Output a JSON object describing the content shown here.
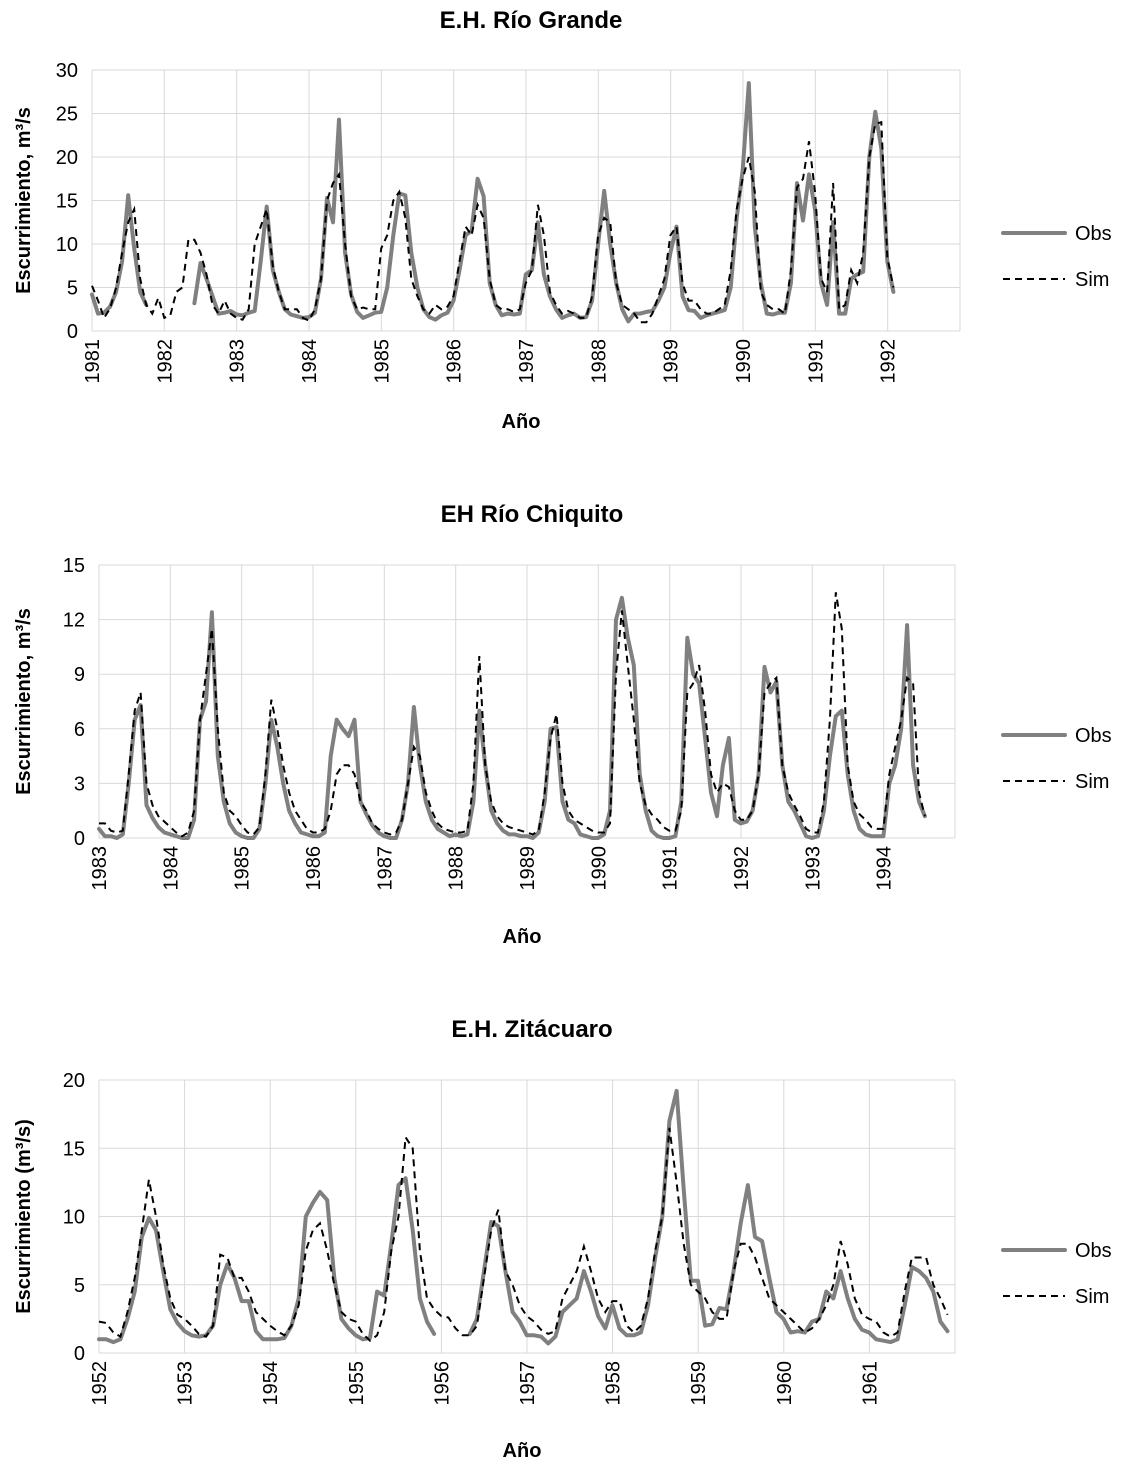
{
  "chart_data": [
    {
      "type": "line",
      "title": "E.H. Río Grande",
      "xlabel": "Año",
      "ylabel": "Escurrimiento, m³/s",
      "ylim": [
        0,
        30
      ],
      "yticks": [
        "0",
        "5",
        "10",
        "15",
        "20",
        "25",
        "30"
      ],
      "xlim": [
        1981,
        1993
      ],
      "xticks": [
        "1981",
        "1982",
        "1983",
        "1984",
        "1985",
        "1986",
        "1987",
        "1988",
        "1989",
        "1990",
        "1991",
        "1992"
      ],
      "grid": true,
      "legend_position": "right",
      "colors": {
        "Obs": "#808080",
        "Sim": "#000000"
      },
      "series": [
        {
          "name": "Obs",
          "x_start": 1981.0,
          "step": 0.0833,
          "values": [
            4.2,
            2.0,
            2.1,
            2.8,
            4.5,
            8.0,
            15.6,
            9.5,
            4.5,
            3.0,
            null,
            null,
            null,
            null,
            null,
            null,
            null,
            3.2,
            7.8,
            6.0,
            4.0,
            2.0,
            2.1,
            2.3,
            1.9,
            1.8,
            2.1,
            2.3,
            8.0,
            14.3,
            7.0,
            4.5,
            2.5,
            1.9,
            1.7,
            1.5,
            1.6,
            2.1,
            6.0,
            15.3,
            12.5,
            24.3,
            9.0,
            4.2,
            2.2,
            1.5,
            1.8,
            2.1,
            2.2,
            5.0,
            11.0,
            15.8,
            15.6,
            9.0,
            5.0,
            2.5,
            1.6,
            1.3,
            1.8,
            2.1,
            3.5,
            7.0,
            11.0,
            11.5,
            17.5,
            15.5,
            5.5,
            3.0,
            1.8,
            2.0,
            1.9,
            2.0,
            6.5,
            7.0,
            12.5,
            6.5,
            4.0,
            2.5,
            1.5,
            1.8,
            2.0,
            1.5,
            1.6,
            3.5,
            10.0,
            16.1,
            10.0,
            5.5,
            2.5,
            1.1,
            2.0,
            2.0,
            2.2,
            2.3,
            3.5,
            5.0,
            9.0,
            12.0,
            4.0,
            2.4,
            2.3,
            1.5,
            1.8,
            2.0,
            2.2,
            2.4,
            5.0,
            13.0,
            18.5,
            28.5,
            12.0,
            5.5,
            2.0,
            1.9,
            2.1,
            2.1,
            5.5,
            17.0,
            12.7,
            18.0,
            14.0,
            5.5,
            3.0,
            12.5,
            2.0,
            2.0,
            6.0,
            6.5,
            6.8,
            20.0,
            25.2,
            21.0,
            8.0,
            4.5
          ]
        },
        {
          "name": "Sim",
          "x_start": 1981.0,
          "step": 0.0833,
          "values": [
            5.2,
            3.5,
            1.5,
            2.6,
            5.0,
            9.0,
            12.5,
            14.0,
            6.0,
            3.0,
            2.0,
            3.8,
            1.5,
            1.8,
            4.5,
            5.0,
            10.5,
            10.5,
            9.0,
            6.5,
            3.0,
            2.0,
            3.5,
            2.0,
            1.5,
            1.3,
            2.5,
            10.0,
            12.0,
            14.0,
            7.5,
            4.5,
            2.5,
            2.5,
            2.5,
            1.5,
            1.2,
            2.5,
            6.0,
            15.0,
            17.0,
            18.0,
            10.0,
            4.0,
            2.5,
            2.7,
            2.5,
            2.5,
            9.5,
            11.0,
            15.0,
            16.0,
            13.0,
            6.0,
            4.0,
            2.5,
            2.0,
            3.0,
            2.5,
            2.8,
            4.0,
            8.0,
            12.0,
            11.0,
            14.5,
            13.0,
            6.0,
            3.0,
            2.5,
            2.5,
            2.2,
            2.5,
            5.5,
            7.0,
            14.5,
            11.0,
            4.5,
            3.0,
            2.0,
            2.3,
            2.0,
            1.5,
            1.5,
            4.0,
            11.0,
            13.0,
            12.5,
            5.5,
            3.0,
            2.5,
            2.0,
            1.0,
            1.0,
            2.0,
            4.0,
            6.0,
            11.0,
            12.0,
            5.5,
            3.5,
            3.5,
            2.5,
            2.0,
            2.0,
            2.5,
            3.0,
            7.0,
            14.0,
            17.5,
            20.0,
            16.0,
            4.5,
            3.0,
            2.5,
            2.5,
            2.0,
            7.0,
            16.5,
            17.5,
            21.8,
            16.0,
            6.0,
            4.5,
            17.0,
            2.5,
            3.0,
            7.0,
            5.5,
            9.0,
            20.0,
            23.8,
            24.0,
            8.5,
            5.0
          ]
        }
      ]
    },
    {
      "type": "line",
      "title": "EH Río Chiquito",
      "xlabel": "Año",
      "ylabel": "Escurrimiento, m³/s",
      "ylim": [
        0,
        15
      ],
      "yticks": [
        "0",
        "3",
        "6",
        "9",
        "12",
        "15"
      ],
      "xlim": [
        1983,
        1995
      ],
      "xticks": [
        "1983",
        "1984",
        "1985",
        "1986",
        "1987",
        "1988",
        "1989",
        "1990",
        "1991",
        "1992",
        "1993",
        "1994"
      ],
      "grid": true,
      "legend_position": "right",
      "colors": {
        "Obs": "#808080",
        "Sim": "#000000"
      },
      "series": [
        {
          "name": "Obs",
          "x_start": 1983.0,
          "step": 0.0833,
          "values": [
            0.5,
            0.1,
            0.1,
            0.0,
            0.2,
            3.0,
            6.5,
            7.3,
            1.8,
            1.1,
            0.6,
            0.3,
            0.2,
            0.1,
            0.0,
            0.0,
            1.0,
            6.5,
            7.5,
            12.4,
            4.5,
            2.0,
            0.8,
            0.3,
            0.1,
            0.0,
            0.0,
            0.5,
            3.0,
            6.5,
            5.0,
            3.0,
            1.5,
            0.8,
            0.3,
            0.2,
            0.1,
            0.1,
            0.3,
            4.5,
            6.5,
            6.0,
            5.6,
            6.5,
            2.0,
            1.3,
            0.7,
            0.3,
            0.1,
            0.0,
            0.0,
            1.0,
            3.0,
            7.2,
            4.0,
            2.0,
            1.0,
            0.5,
            0.3,
            0.1,
            0.2,
            0.1,
            0.2,
            2.0,
            7.0,
            4.0,
            1.5,
            0.8,
            0.4,
            0.2,
            0.2,
            0.1,
            0.1,
            0.0,
            0.3,
            2.0,
            6.0,
            6.1,
            2.0,
            1.0,
            0.8,
            0.2,
            0.1,
            0.0,
            0.0,
            0.2,
            1.5,
            12.0,
            13.2,
            11.0,
            9.5,
            3.5,
            1.5,
            0.4,
            0.1,
            0.0,
            0.0,
            0.1,
            2.0,
            11.0,
            9.0,
            8.5,
            5.5,
            2.5,
            1.2,
            4.0,
            5.5,
            1.0,
            0.8,
            0.9,
            1.5,
            3.5,
            9.4,
            8.0,
            8.6,
            4.0,
            2.0,
            1.5,
            0.8,
            0.1,
            0.0,
            0.1,
            1.5,
            4.5,
            6.7,
            7.0,
            3.5,
            1.5,
            0.5,
            0.2,
            0.1,
            0.1,
            0.1,
            3.0,
            4.0,
            6.0,
            11.7,
            4.0,
            2.0,
            1.2
          ]
        },
        {
          "name": "Sim",
          "x_start": 1983.0,
          "step": 0.0833,
          "values": [
            0.8,
            0.8,
            0.4,
            0.3,
            0.4,
            3.5,
            7.0,
            8.0,
            3.0,
            1.8,
            1.2,
            0.9,
            0.6,
            0.3,
            0.1,
            0.3,
            1.5,
            6.5,
            9.0,
            11.5,
            6.0,
            2.5,
            1.5,
            1.2,
            0.7,
            0.3,
            0.2,
            0.6,
            3.5,
            7.6,
            6.0,
            4.0,
            2.5,
            1.5,
            1.0,
            0.5,
            0.3,
            0.3,
            0.5,
            1.5,
            3.5,
            4.0,
            4.0,
            3.5,
            2.0,
            1.5,
            0.8,
            0.5,
            0.3,
            0.2,
            0.3,
            1.0,
            3.0,
            5.0,
            4.5,
            2.5,
            1.5,
            0.8,
            0.5,
            0.4,
            0.3,
            0.3,
            0.4,
            3.0,
            10.0,
            4.0,
            2.0,
            1.2,
            0.8,
            0.6,
            0.5,
            0.4,
            0.3,
            0.2,
            0.4,
            2.5,
            5.5,
            6.8,
            3.0,
            1.5,
            1.0,
            0.8,
            0.6,
            0.4,
            0.3,
            0.3,
            0.8,
            9.0,
            12.5,
            9.5,
            6.5,
            3.0,
            1.8,
            1.3,
            1.0,
            0.6,
            0.4,
            0.4,
            1.5,
            8.0,
            8.5,
            9.5,
            7.0,
            3.5,
            2.5,
            3.0,
            2.8,
            1.5,
            1.0,
            1.0,
            1.5,
            3.5,
            8.0,
            8.5,
            8.8,
            4.0,
            2.5,
            1.8,
            1.2,
            0.5,
            0.3,
            0.3,
            2.0,
            6.5,
            13.5,
            11.5,
            4.0,
            2.0,
            1.3,
            1.0,
            0.6,
            0.5,
            0.5,
            3.5,
            5.0,
            6.5,
            8.8,
            8.5,
            2.5,
            1.2
          ]
        }
      ]
    },
    {
      "type": "line",
      "title": "E.H. Zitácuaro",
      "xlabel": "Año",
      "ylabel": "Escurrimiento (m³/s)",
      "ylim": [
        0,
        20
      ],
      "yticks": [
        "0",
        "5",
        "10",
        "15",
        "20"
      ],
      "xlim": [
        1952,
        1962
      ],
      "xticks": [
        "1952",
        "1953",
        "1954",
        "1955",
        "1956",
        "1957",
        "1958",
        "1959",
        "1960",
        "1961"
      ],
      "grid": true,
      "legend_position": "right",
      "colors": {
        "Obs": "#808080",
        "Sim": "#000000"
      },
      "series": [
        {
          "name": "Obs",
          "x_start": 1952.0,
          "step": 0.0833,
          "values": [
            1.0,
            1.0,
            0.8,
            1.0,
            2.5,
            4.5,
            8.5,
            9.9,
            9.0,
            6.0,
            3.2,
            2.2,
            1.6,
            1.3,
            1.2,
            1.3,
            2.0,
            5.0,
            6.5,
            5.5,
            3.8,
            3.8,
            1.6,
            1.0,
            1.0,
            1.0,
            1.1,
            2.0,
            4.0,
            10.0,
            11.0,
            11.8,
            11.2,
            5.5,
            2.5,
            1.8,
            1.3,
            1.0,
            1.1,
            4.5,
            4.2,
            8.0,
            12.3,
            12.8,
            9.0,
            4.0,
            2.3,
            1.4,
            null,
            null,
            null,
            null,
            1.4,
            2.5,
            6.0,
            9.6,
            9.3,
            6.0,
            3.0,
            2.3,
            1.3,
            1.3,
            1.2,
            0.7,
            1.2,
            3.0,
            3.5,
            4.0,
            6.0,
            4.5,
            2.7,
            1.8,
            3.5,
            1.8,
            1.3,
            1.3,
            1.5,
            3.5,
            7.0,
            10.0,
            17.0,
            19.2,
            12.0,
            5.3,
            5.3,
            2.0,
            2.1,
            3.3,
            3.2,
            6.0,
            9.5,
            12.3,
            8.5,
            8.2,
            5.5,
            3.0,
            2.5,
            1.5,
            1.6,
            1.5,
            2.3,
            2.5,
            4.5,
            4.0,
            6.0,
            4.0,
            2.5,
            1.7,
            1.5,
            1.0,
            0.9,
            0.8,
            1.0,
            3.5,
            6.3,
            6.0,
            5.5,
            4.5,
            2.3,
            1.6
          ]
        },
        {
          "name": "Sim",
          "x_start": 1952.0,
          "step": 0.0833,
          "values": [
            2.3,
            2.2,
            1.5,
            1.2,
            3.0,
            5.5,
            9.0,
            12.7,
            10.0,
            6.5,
            4.0,
            2.8,
            2.5,
            2.0,
            1.4,
            1.2,
            2.0,
            7.2,
            7.0,
            5.5,
            5.5,
            4.5,
            3.0,
            2.5,
            2.0,
            1.6,
            1.3,
            2.0,
            3.5,
            7.5,
            9.0,
            9.5,
            7.5,
            5.0,
            3.0,
            2.5,
            2.3,
            1.4,
            0.9,
            1.3,
            3.0,
            7.5,
            10.0,
            15.8,
            15.0,
            7.5,
            4.0,
            3.2,
            2.7,
            2.6,
            1.8,
            1.3,
            1.3,
            2.0,
            5.5,
            9.0,
            10.5,
            6.0,
            5.0,
            3.5,
            2.7,
            2.3,
            1.7,
            1.4,
            1.6,
            4.0,
            5.0,
            6.0,
            7.8,
            6.0,
            4.0,
            3.0,
            3.8,
            3.8,
            2.0,
            1.5,
            2.0,
            4.0,
            7.5,
            10.0,
            16.5,
            12.5,
            8.0,
            5.0,
            4.5,
            4.0,
            3.0,
            2.5,
            2.5,
            6.0,
            8.0,
            8.0,
            7.0,
            5.5,
            4.0,
            3.5,
            3.0,
            2.5,
            2.0,
            1.5,
            1.8,
            2.5,
            3.5,
            5.0,
            8.2,
            6.5,
            4.0,
            2.8,
            2.5,
            2.3,
            1.5,
            1.2,
            1.5,
            4.5,
            7.0,
            7.0,
            7.0,
            5.0,
            4.0,
            2.8
          ]
        }
      ]
    }
  ],
  "legend": {
    "obs_label": "Obs",
    "sim_label": "Sim"
  }
}
